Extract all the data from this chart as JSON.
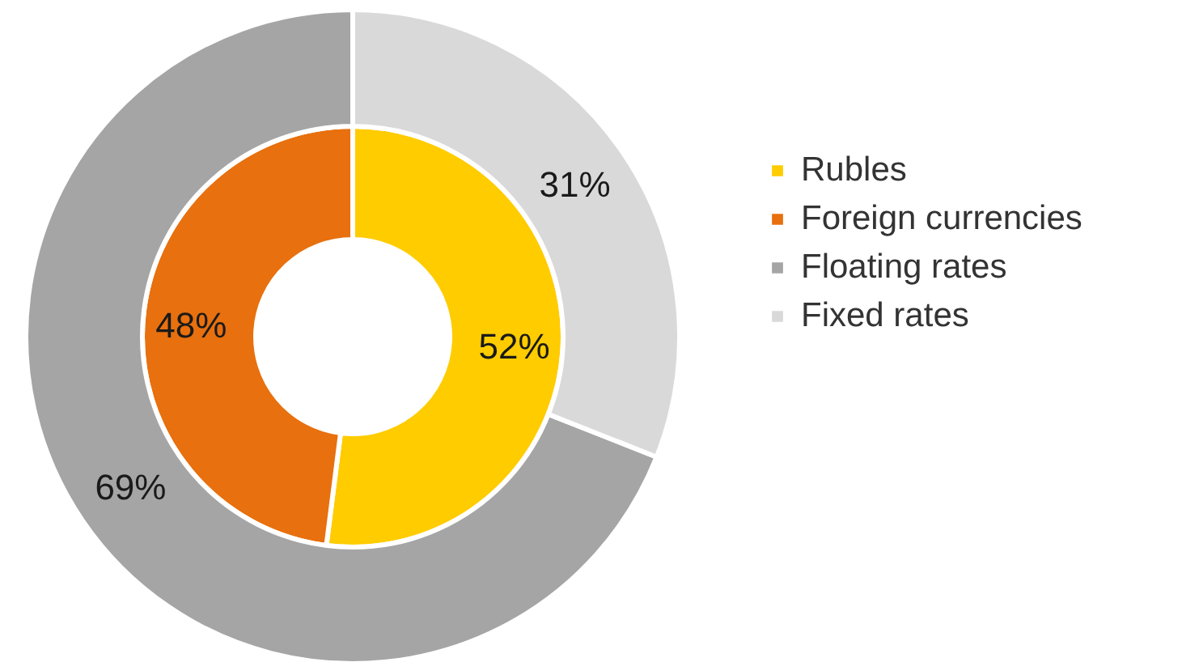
{
  "chart_data": {
    "type": "donut",
    "categories": [
      "Rubles",
      "Foreign currencies",
      "Floating rates",
      "Fixed rates"
    ],
    "colors": [
      "#ffcc00",
      "#e8700e",
      "#a5a5a5",
      "#d9d9d9"
    ],
    "legend": "right",
    "series": [
      {
        "values": [
          52,
          48,
          null,
          null
        ],
        "value_labels": [
          "52%",
          "48%",
          null,
          null
        ]
      },
      {
        "values": [
          null,
          null,
          69,
          31
        ],
        "value_labels": [
          null,
          null,
          "69%",
          "31%"
        ]
      }
    ]
  }
}
